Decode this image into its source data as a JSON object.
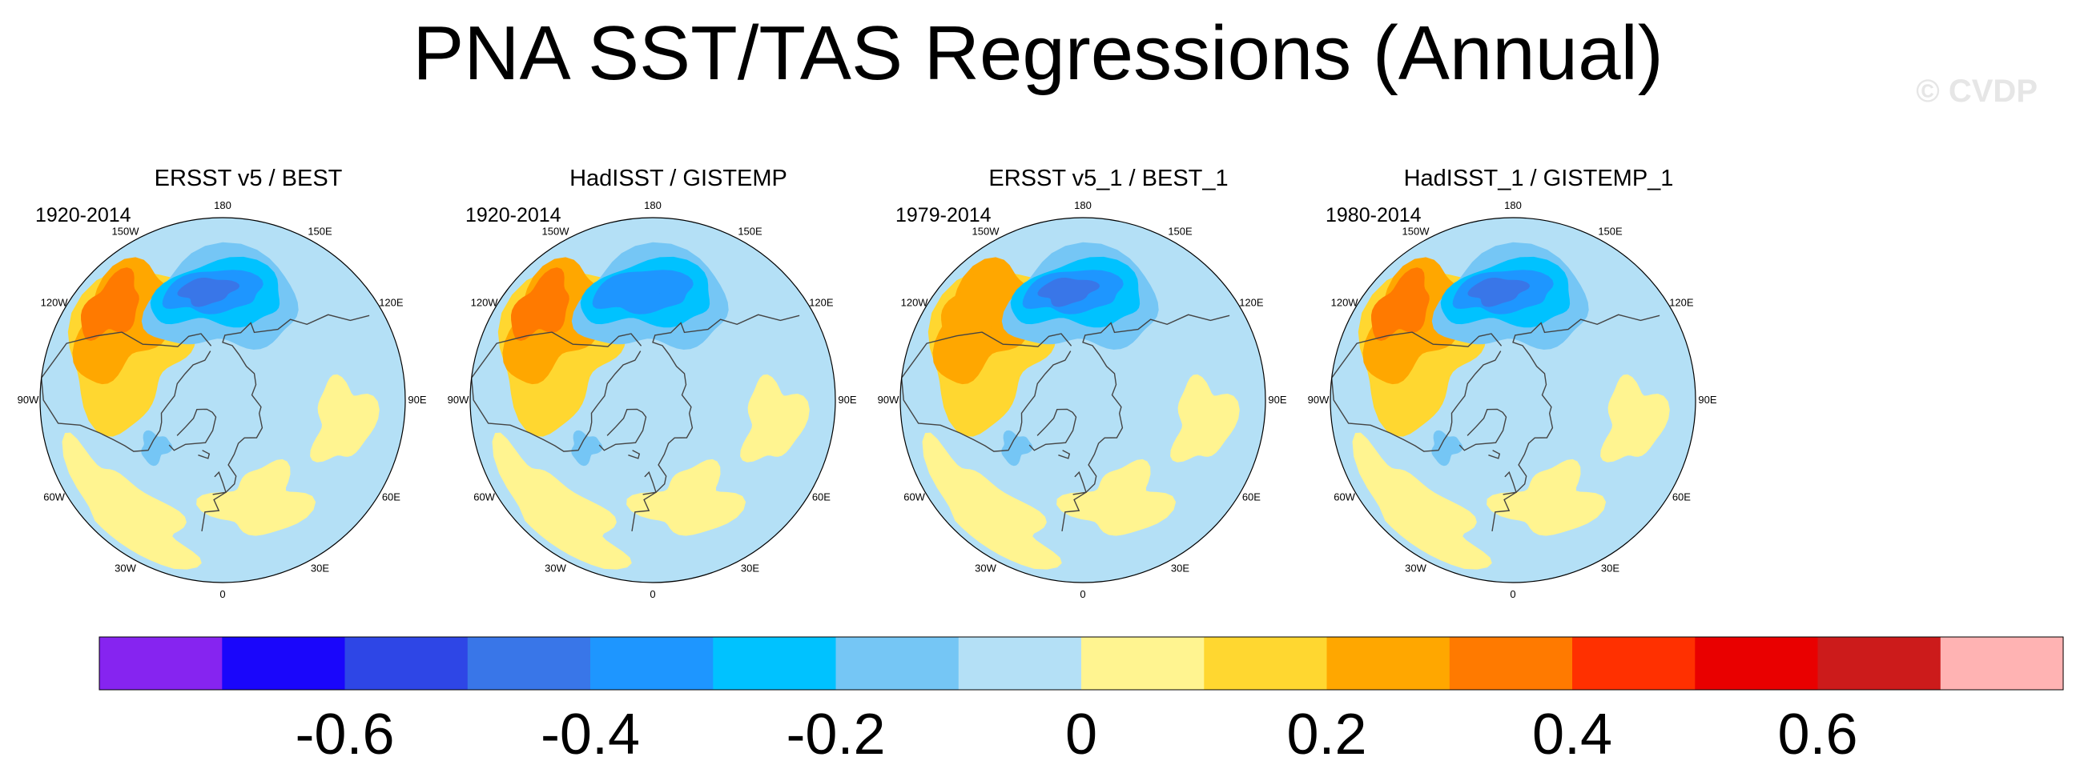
{
  "title": "PNA SST/TAS Regressions (Annual)",
  "watermark": "© CVDP",
  "chart_data": {
    "type": "heatmap",
    "projection": "polar-stereographic-north",
    "longitude_labels": [
      "180",
      "150E",
      "120E",
      "90E",
      "60E",
      "30E",
      "0",
      "30W",
      "60W",
      "90W",
      "120W",
      "150W"
    ],
    "panels": [
      {
        "title": "ERSST v5 / BEST",
        "period": "1920-2014",
        "pacific_anomaly": -0.45,
        "na_anomaly": 0.25
      },
      {
        "title": "HadISST / GISTEMP",
        "period": "1920-2014",
        "pacific_anomaly": -0.4,
        "na_anomaly": 0.28
      },
      {
        "title": "ERSST v5_1 / BEST_1",
        "period": "1979-2014",
        "pacific_anomaly": -0.42,
        "na_anomaly": 0.22
      },
      {
        "title": "HadISST_1 / GISTEMP_1",
        "period": "1980-2014",
        "pacific_anomaly": -0.45,
        "na_anomaly": 0.26
      }
    ],
    "colorbar": {
      "levels": [
        -0.7,
        -0.6,
        -0.5,
        -0.4,
        -0.3,
        -0.2,
        -0.1,
        0,
        0.1,
        0.2,
        0.3,
        0.4,
        0.5,
        0.6,
        0.7
      ],
      "tick_labels": [
        "-0.6",
        "-0.4",
        "-0.2",
        "0",
        "0.2",
        "0.4",
        "0.6"
      ],
      "colors": [
        "#8624f0",
        "#1a06fb",
        "#2e46e6",
        "#3976e8",
        "#1e96ff",
        "#00c2ff",
        "#75c6f5",
        "#b4e0f6",
        "#fff490",
        "#ffd730",
        "#ffa700",
        "#ff7a00",
        "#ff3000",
        "#e90000",
        "#cc1b1b",
        "#ffb3b3"
      ]
    }
  }
}
